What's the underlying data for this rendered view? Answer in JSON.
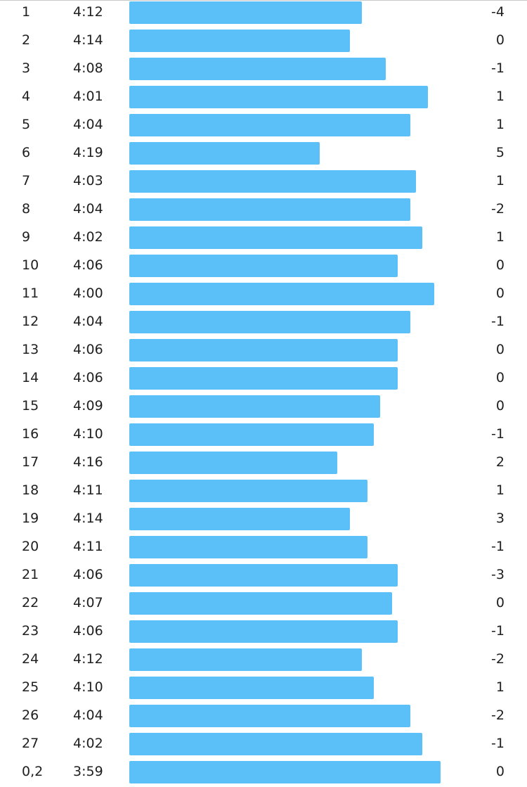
{
  "colors": {
    "bar": "#5bbff8",
    "text": "#1f1f1f",
    "background": "#ffffff"
  },
  "splits": [
    {
      "km": "1",
      "pace": "4:12",
      "pace_seconds": 252,
      "elev": "-4"
    },
    {
      "km": "2",
      "pace": "4:14",
      "pace_seconds": 254,
      "elev": "0"
    },
    {
      "km": "3",
      "pace": "4:08",
      "pace_seconds": 248,
      "elev": "-1"
    },
    {
      "km": "4",
      "pace": "4:01",
      "pace_seconds": 241,
      "elev": "1"
    },
    {
      "km": "5",
      "pace": "4:04",
      "pace_seconds": 244,
      "elev": "1"
    },
    {
      "km": "6",
      "pace": "4:19",
      "pace_seconds": 259,
      "elev": "5"
    },
    {
      "km": "7",
      "pace": "4:03",
      "pace_seconds": 243,
      "elev": "1"
    },
    {
      "km": "8",
      "pace": "4:04",
      "pace_seconds": 244,
      "elev": "-2"
    },
    {
      "km": "9",
      "pace": "4:02",
      "pace_seconds": 242,
      "elev": "1"
    },
    {
      "km": "10",
      "pace": "4:06",
      "pace_seconds": 246,
      "elev": "0"
    },
    {
      "km": "11",
      "pace": "4:00",
      "pace_seconds": 240,
      "elev": "0"
    },
    {
      "km": "12",
      "pace": "4:04",
      "pace_seconds": 244,
      "elev": "-1"
    },
    {
      "km": "13",
      "pace": "4:06",
      "pace_seconds": 246,
      "elev": "0"
    },
    {
      "km": "14",
      "pace": "4:06",
      "pace_seconds": 246,
      "elev": "0"
    },
    {
      "km": "15",
      "pace": "4:09",
      "pace_seconds": 249,
      "elev": "0"
    },
    {
      "km": "16",
      "pace": "4:10",
      "pace_seconds": 250,
      "elev": "-1"
    },
    {
      "km": "17",
      "pace": "4:16",
      "pace_seconds": 256,
      "elev": "2"
    },
    {
      "km": "18",
      "pace": "4:11",
      "pace_seconds": 251,
      "elev": "1"
    },
    {
      "km": "19",
      "pace": "4:14",
      "pace_seconds": 254,
      "elev": "3"
    },
    {
      "km": "20",
      "pace": "4:11",
      "pace_seconds": 251,
      "elev": "-1"
    },
    {
      "km": "21",
      "pace": "4:06",
      "pace_seconds": 246,
      "elev": "-3"
    },
    {
      "km": "22",
      "pace": "4:07",
      "pace_seconds": 247,
      "elev": "0"
    },
    {
      "km": "23",
      "pace": "4:06",
      "pace_seconds": 246,
      "elev": "-1"
    },
    {
      "km": "24",
      "pace": "4:12",
      "pace_seconds": 252,
      "elev": "-2"
    },
    {
      "km": "25",
      "pace": "4:10",
      "pace_seconds": 250,
      "elev": "1"
    },
    {
      "km": "26",
      "pace": "4:04",
      "pace_seconds": 244,
      "elev": "-2"
    },
    {
      "km": "27",
      "pace": "4:02",
      "pace_seconds": 242,
      "elev": "-1"
    },
    {
      "km": "0,2",
      "pace": "3:59",
      "pace_seconds": 239,
      "elev": "0"
    }
  ]
}
